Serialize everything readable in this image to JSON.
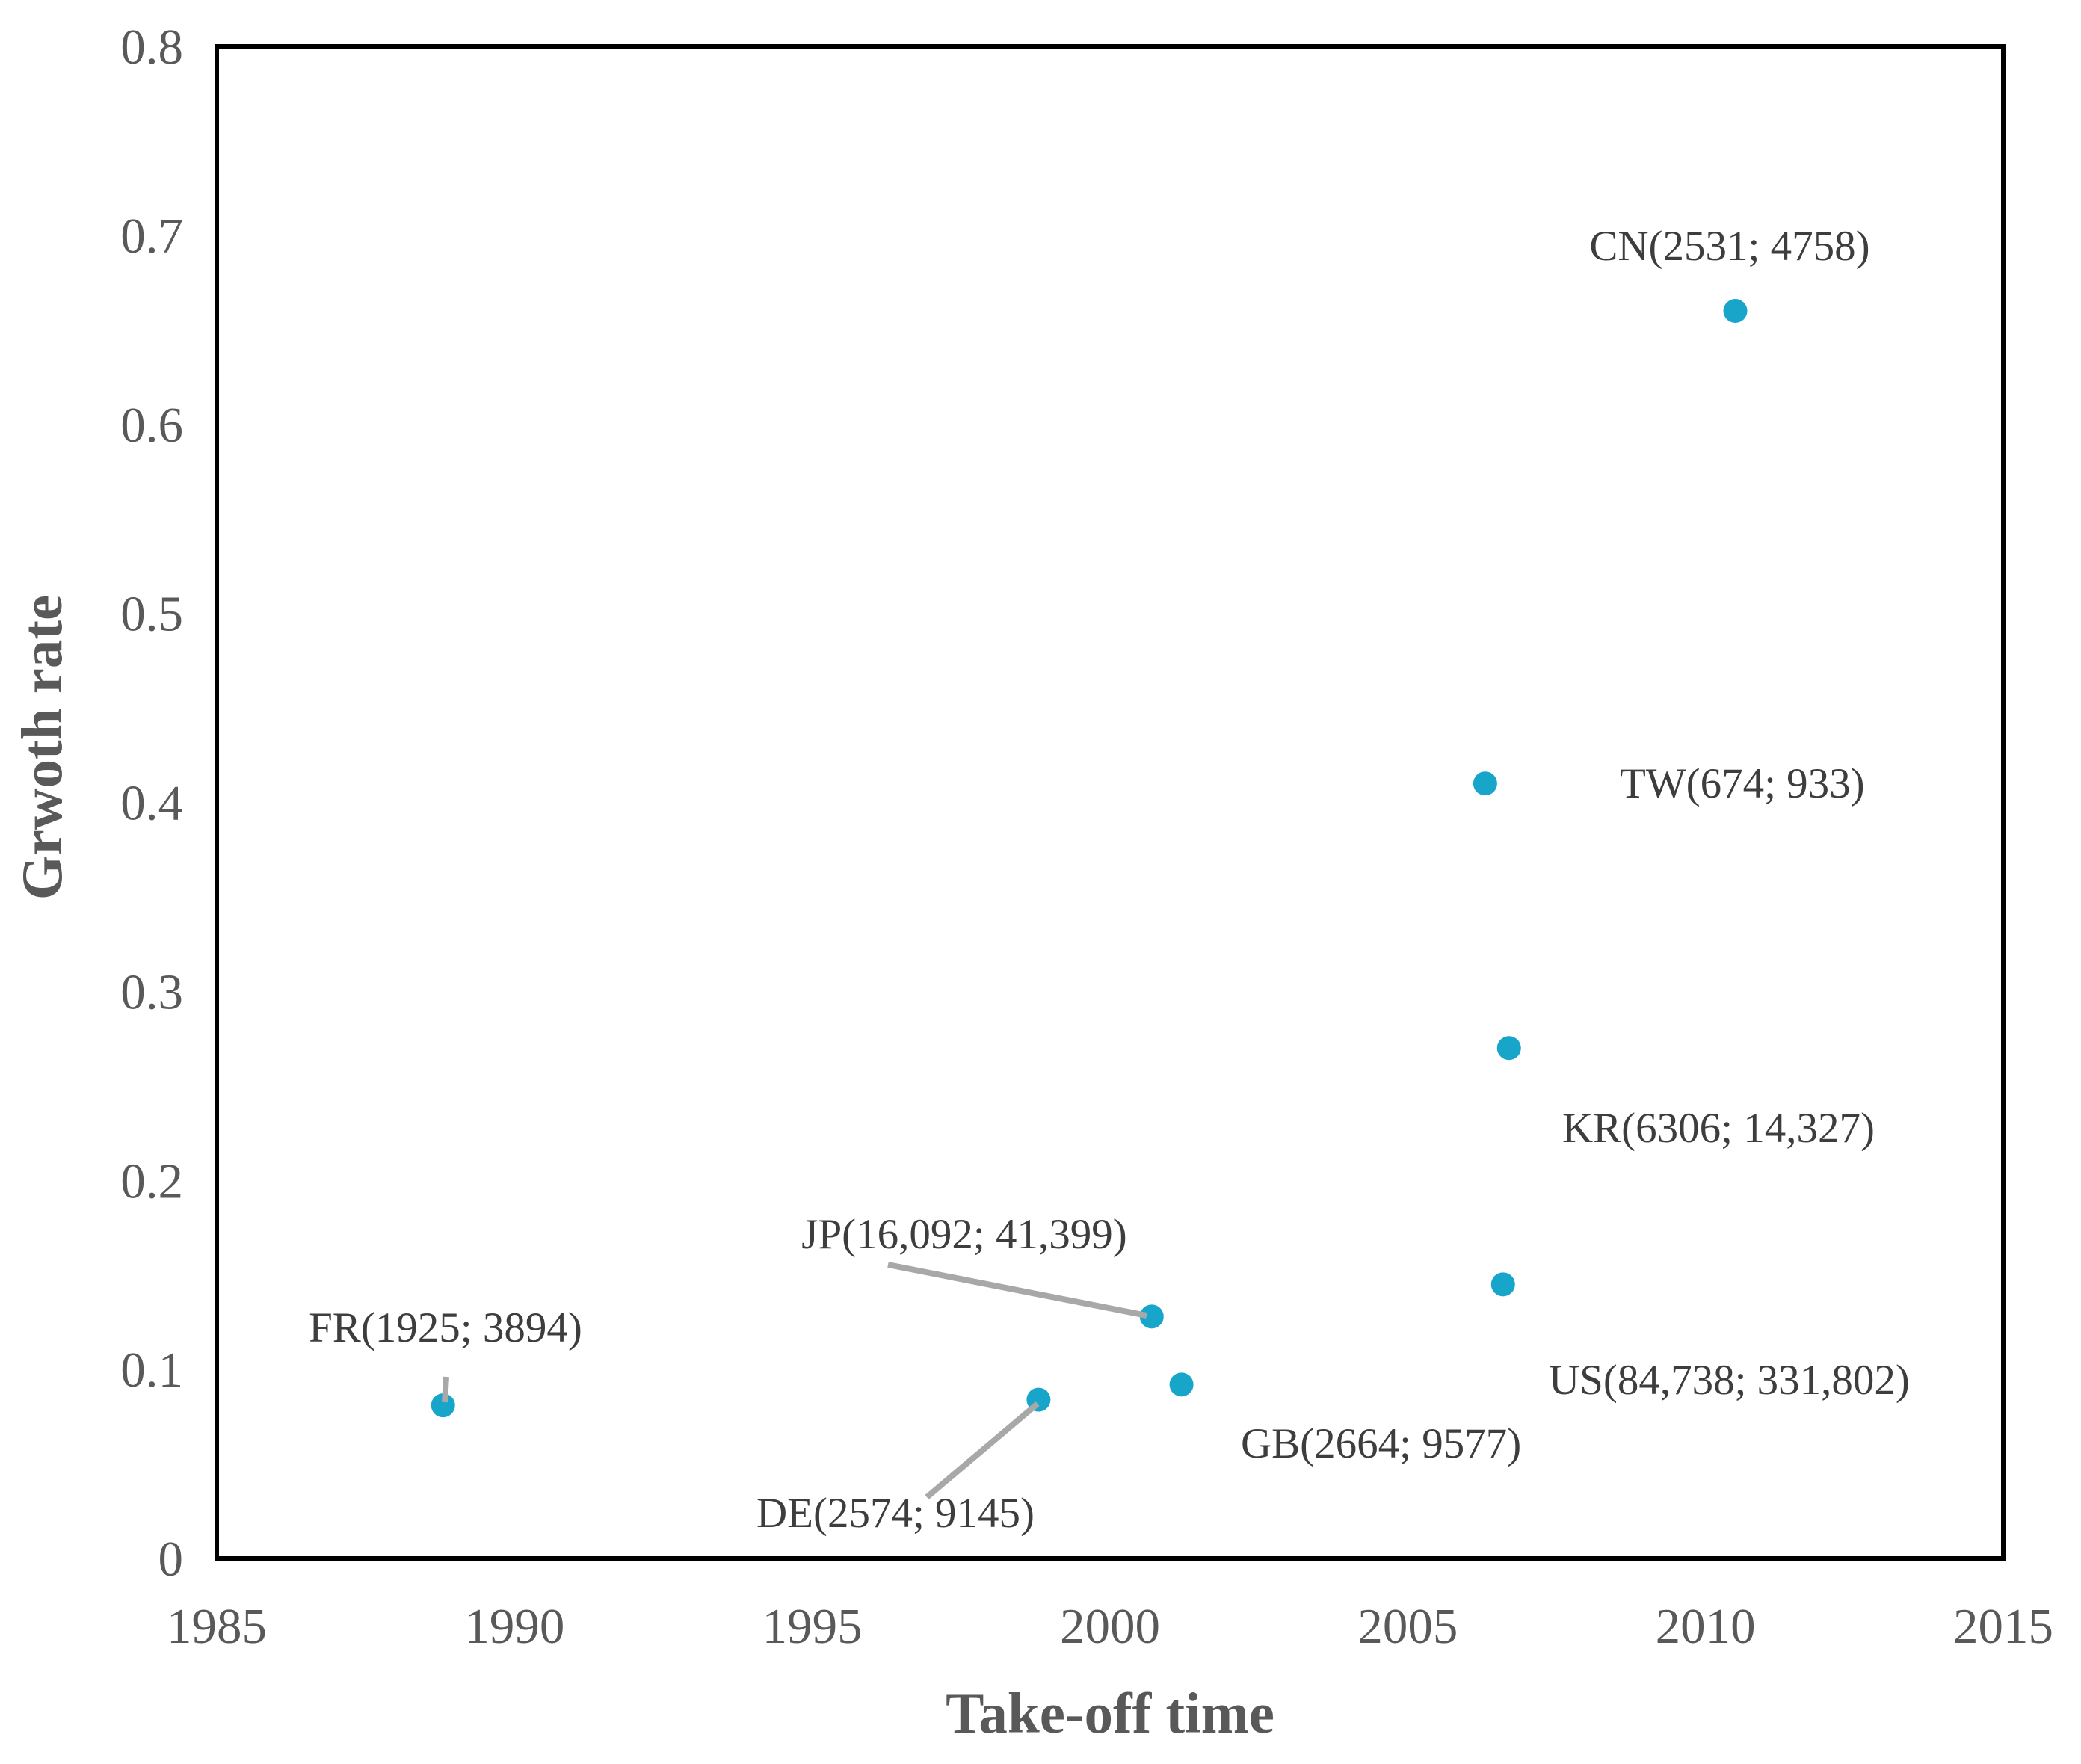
{
  "figure": {
    "background_color": "#ffffff",
    "plot_border_color": "#000000",
    "text_color": "#595959",
    "label_text_color": "#3d3d3d"
  },
  "chart_data": {
    "type": "scatter",
    "title": "",
    "xlabel": "Take-off time",
    "ylabel": "Grwoth rate",
    "xlim": [
      1985,
      2015
    ],
    "ylim": [
      0,
      0.8
    ],
    "xticks": [
      1985,
      1990,
      1995,
      2000,
      2005,
      2010,
      2015
    ],
    "xtick_labels": [
      "1985",
      "1990",
      "1995",
      "2000",
      "2005",
      "2010",
      "2015"
    ],
    "yticks": [
      0,
      0.1,
      0.2,
      0.3,
      0.4,
      0.5,
      0.6,
      0.7,
      0.8
    ],
    "ytick_labels": [
      "0",
      "0.1",
      "0.2",
      "0.3",
      "0.4",
      "0.5",
      "0.6",
      "0.7",
      "0.8"
    ],
    "grid": false,
    "legend": false,
    "marker_color": "#17a5c9",
    "leader_line_color": "#a8a8a8",
    "points": [
      {
        "code": "FR",
        "label": "FR(1925; 3894)",
        "values": [
          1925,
          3894
        ],
        "x": 1988.8,
        "y": 0.081,
        "leader_line": true
      },
      {
        "code": "DE",
        "label": "DE(2574; 9145)",
        "values": [
          2574,
          9145
        ],
        "x": 1998.8,
        "y": 0.084,
        "leader_line": true
      },
      {
        "code": "JP",
        "label": "JP(16,092; 41,399)",
        "values": [
          16092,
          41399
        ],
        "x": 2000.7,
        "y": 0.128,
        "leader_line": true
      },
      {
        "code": "GB",
        "label": "GB(2664; 9577)",
        "values": [
          2664,
          9577
        ],
        "x": 2001.2,
        "y": 0.092,
        "leader_line": false
      },
      {
        "code": "TW",
        "label": "TW(674; 933)",
        "values": [
          674,
          933
        ],
        "x": 2006.3,
        "y": 0.41,
        "leader_line": false
      },
      {
        "code": "US",
        "label": "US(84,738; 331,802)",
        "values": [
          84738,
          331802
        ],
        "x": 2006.6,
        "y": 0.145,
        "leader_line": false
      },
      {
        "code": "KR",
        "label": "KR(6306; 14,327)",
        "values": [
          6306,
          14327
        ],
        "x": 2006.7,
        "y": 0.27,
        "leader_line": false
      },
      {
        "code": "CN",
        "label": "CN(2531; 4758)",
        "values": [
          2531,
          4758
        ],
        "x": 2010.5,
        "y": 0.66,
        "leader_line": false
      }
    ]
  }
}
